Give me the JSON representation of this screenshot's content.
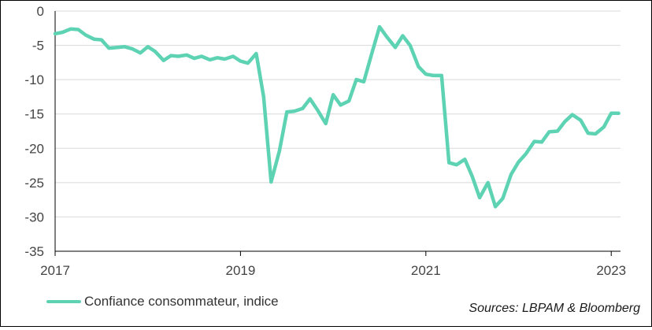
{
  "chart_data": {
    "type": "line",
    "title": "",
    "xlabel": "",
    "ylabel": "",
    "xlim": [
      2017.0,
      2023.1
    ],
    "ylim": [
      -35,
      0
    ],
    "y_ticks": [
      0,
      -5,
      -10,
      -15,
      -20,
      -25,
      -30,
      -35
    ],
    "x_ticks": [
      {
        "value": 2017,
        "label": "2017"
      },
      {
        "value": 2019,
        "label": "2019"
      },
      {
        "value": 2021,
        "label": "2021"
      },
      {
        "value": 2023,
        "label": "2023"
      }
    ],
    "grid": "horizontal",
    "series": [
      {
        "name": "Confiance consommateur, indice",
        "color": "#5ed3b4",
        "x": [
          2017.0,
          2017.08,
          2017.17,
          2017.25,
          2017.33,
          2017.42,
          2017.5,
          2017.58,
          2017.67,
          2017.75,
          2017.83,
          2017.92,
          2018.0,
          2018.08,
          2018.17,
          2018.25,
          2018.33,
          2018.42,
          2018.5,
          2018.58,
          2018.67,
          2018.75,
          2018.83,
          2018.92,
          2019.0,
          2019.08,
          2019.17,
          2019.25,
          2019.33,
          2019.42,
          2019.5,
          2019.58,
          2019.67,
          2019.75,
          2019.83,
          2019.92,
          2020.0,
          2020.08,
          2020.17,
          2020.25,
          2020.33,
          2020.42,
          2020.5,
          2020.58,
          2020.67,
          2020.75,
          2020.83,
          2020.92,
          2021.0,
          2021.08,
          2021.17,
          2021.25,
          2021.33,
          2021.42,
          2021.5,
          2021.58,
          2021.67,
          2021.75,
          2021.83,
          2021.92,
          2022.0,
          2022.08,
          2022.17,
          2022.25,
          2022.33,
          2022.42,
          2022.5,
          2022.58,
          2022.67,
          2022.75,
          2022.83,
          2022.92,
          2023.0,
          2023.08
        ],
        "values": [
          -3.3,
          -3.1,
          -2.6,
          -2.7,
          -3.5,
          -4.1,
          -4.2,
          -5.4,
          -5.3,
          -5.2,
          -5.5,
          -6.1,
          -5.2,
          -5.9,
          -7.2,
          -6.5,
          -6.6,
          -6.4,
          -6.9,
          -6.6,
          -7.1,
          -6.8,
          -7.0,
          -6.6,
          -7.3,
          -7.6,
          -6.2,
          -12.5,
          -24.9,
          -20.4,
          -14.7,
          -14.6,
          -14.2,
          -12.8,
          -14.4,
          -16.4,
          -12.2,
          -13.7,
          -13.1,
          -10.0,
          -10.3,
          -6.0,
          -2.3,
          -3.8,
          -5.3,
          -3.6,
          -5.0,
          -8.1,
          -9.2,
          -9.4,
          -9.4,
          -22.1,
          -22.4,
          -21.6,
          -24.1,
          -27.2,
          -25.0,
          -28.5,
          -27.3,
          -23.8,
          -22.0,
          -20.8,
          -19.0,
          -19.1,
          -17.6,
          -17.5,
          -16.1,
          -15.1,
          -15.9,
          -17.8,
          -17.9,
          -16.9,
          -14.9,
          -14.9
        ]
      }
    ],
    "legend": "bottom-left"
  },
  "source_text": "Sources: LBPAM & Bloomberg"
}
